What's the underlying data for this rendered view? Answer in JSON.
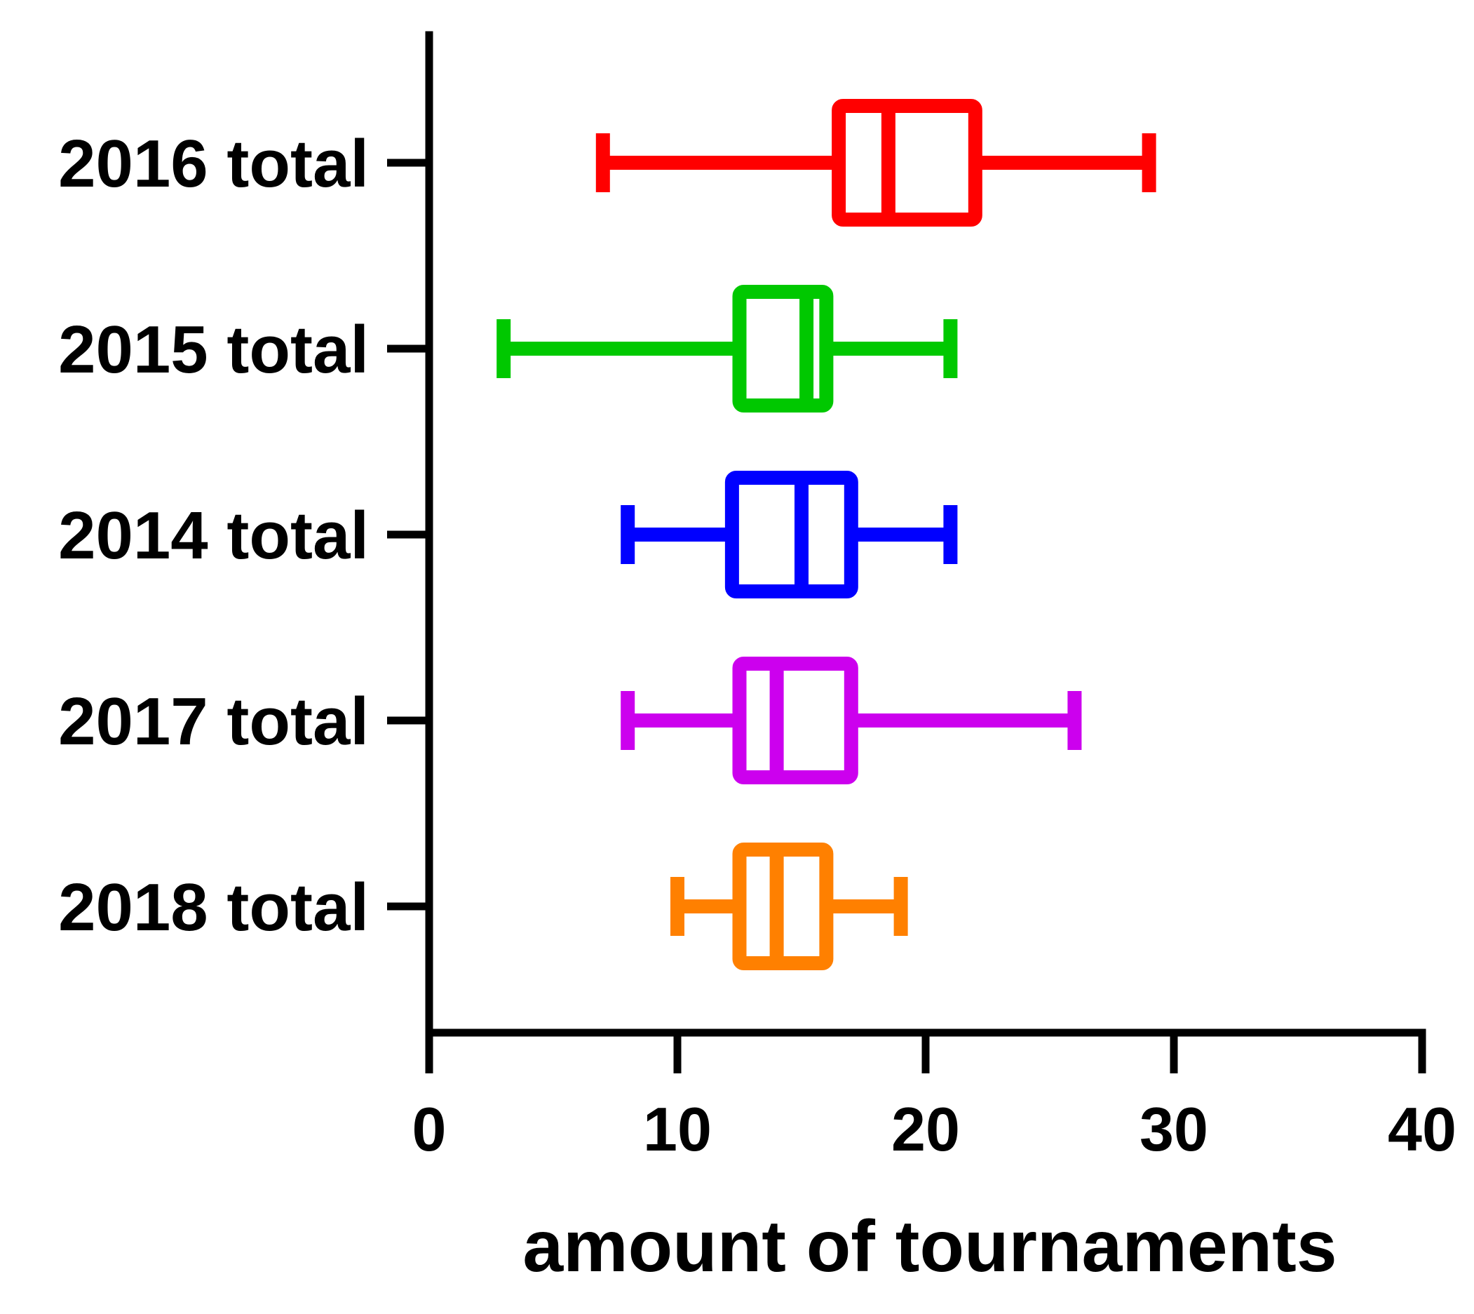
{
  "chart_data": {
    "type": "boxplot",
    "orientation": "horizontal",
    "xlabel": "amount of tournaments",
    "ylabel": "",
    "title": "",
    "xlim": [
      0,
      40
    ],
    "x_ticks": [
      "0",
      "10",
      "20",
      "30",
      "40"
    ],
    "grid": false,
    "legend": "none",
    "series": [
      {
        "name": "2016 total",
        "color": "#ff0000",
        "min": 7,
        "q1": 16.5,
        "median": 18.5,
        "q3": 22,
        "max": 29
      },
      {
        "name": "2015 total",
        "color": "#00c800",
        "min": 3,
        "q1": 12.5,
        "median": 15.2,
        "q3": 16,
        "max": 21
      },
      {
        "name": "2014 total",
        "color": "#0000ff",
        "min": 8,
        "q1": 12.2,
        "median": 15,
        "q3": 17,
        "max": 21
      },
      {
        "name": "2017 total",
        "color": "#cc00ee",
        "min": 8,
        "q1": 12.5,
        "median": 14,
        "q3": 17,
        "max": 26
      },
      {
        "name": "2018 total",
        "color": "#ff8000",
        "min": 10,
        "q1": 12.5,
        "median": 14,
        "q3": 16,
        "max": 19
      }
    ]
  }
}
